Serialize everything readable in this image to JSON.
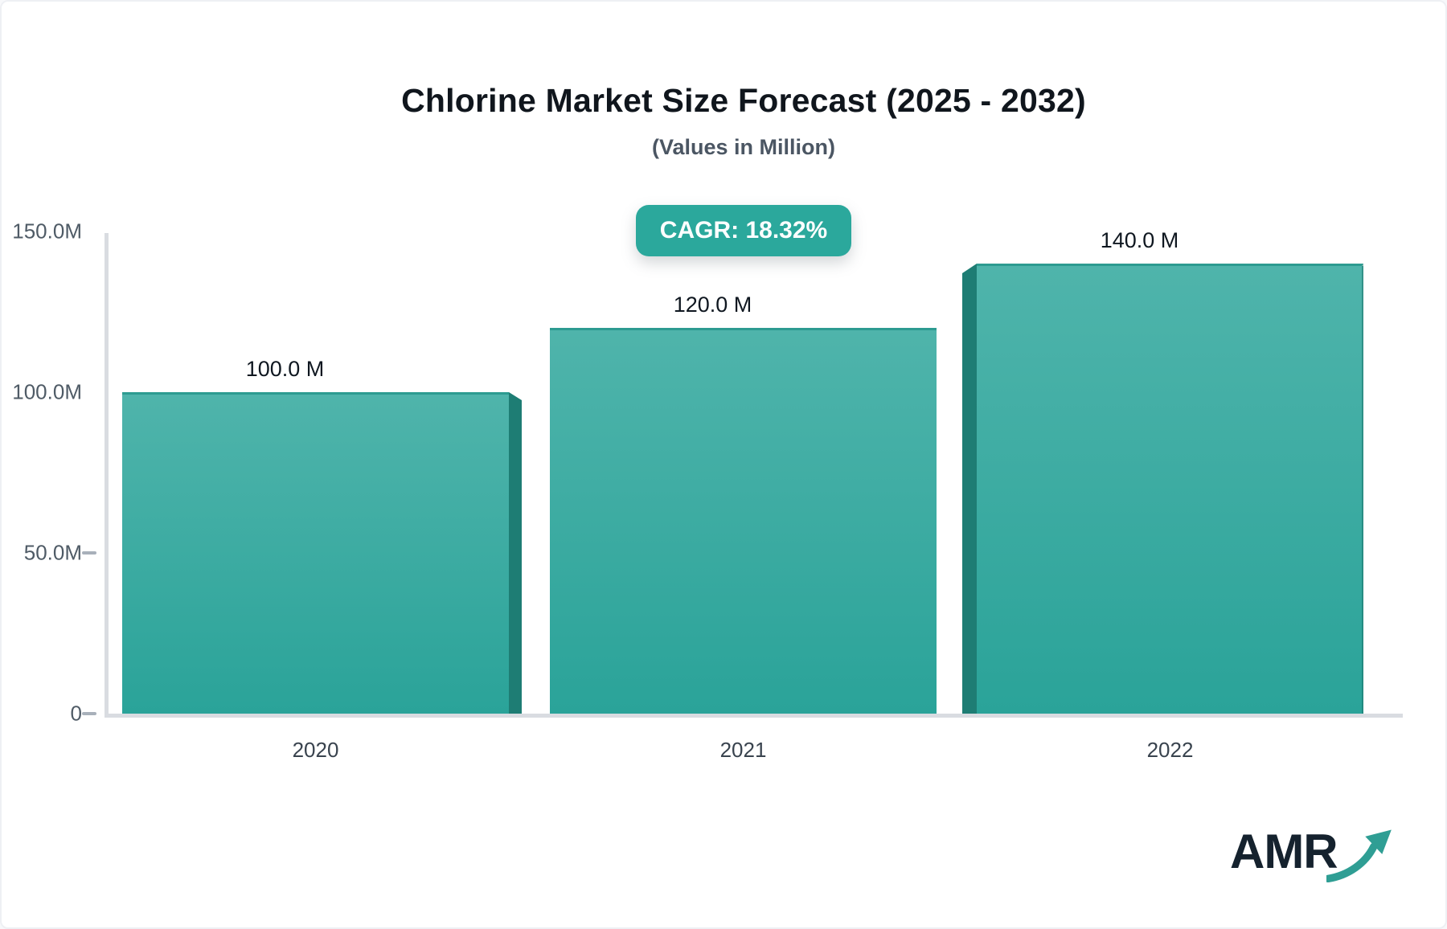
{
  "header": {
    "title": "Chlorine Market Size Forecast (2025 - 2032)",
    "subtitle": "(Values in Million)",
    "cagr_badge": "CAGR: 18.32%"
  },
  "chart_data": {
    "type": "bar",
    "title": "Chlorine Market Size Forecast (2025 - 2032)",
    "subtitle": "(Values in Million)",
    "cagr_percent": 18.32,
    "unit": "Million",
    "categories": [
      "2020",
      "2021",
      "2022"
    ],
    "values": [
      100,
      120,
      140
    ],
    "value_labels": [
      "100.0 M",
      "120.0 M",
      "140.0 M"
    ],
    "ylim": [
      0,
      150
    ],
    "yticks": [
      {
        "value": 0,
        "label": "0",
        "dash": true
      },
      {
        "value": 50,
        "label": "50.0M",
        "dash": true
      },
      {
        "value": 100,
        "label": "100.0M",
        "dash": false
      },
      {
        "value": 150,
        "label": "150.0M",
        "dash": false
      }
    ],
    "grid": false,
    "legend_position": "none"
  },
  "colors": {
    "bar_gradient_top": "#4fb4ab",
    "bar_gradient_bottom": "#2aa399",
    "bar_side_3d": "#1e7d74",
    "bar_top_border": "#2d9b91",
    "badge_background": "#2ba89c",
    "badge_text": "#ffffff",
    "axis_line": "#d9dce1",
    "title_text": "#10161d",
    "logo_arrow": "#2f9e94"
  },
  "logo": {
    "text": "AMR"
  }
}
